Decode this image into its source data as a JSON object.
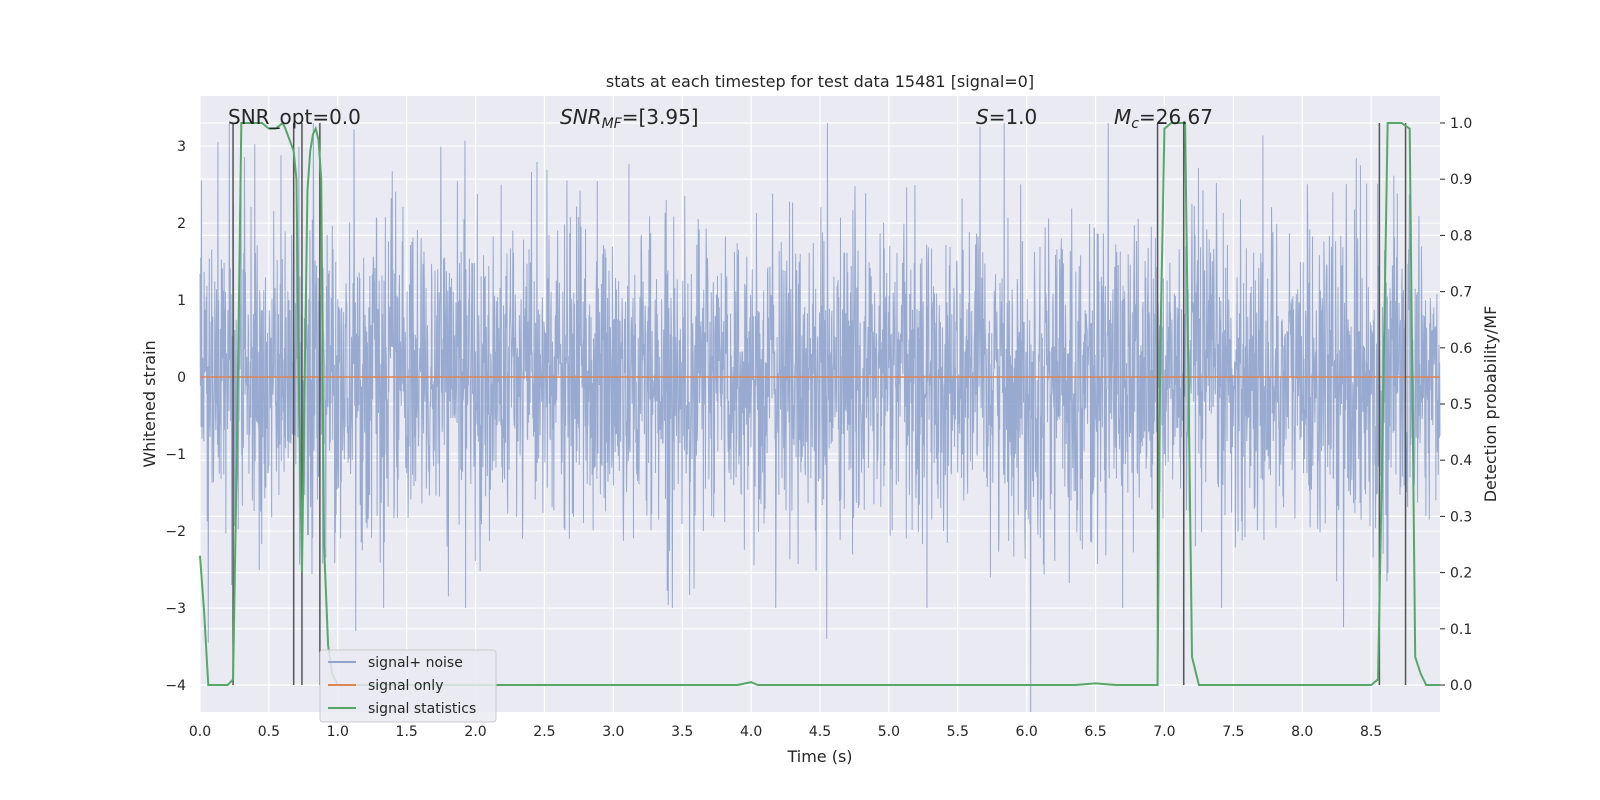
{
  "chart_data": {
    "type": "line",
    "title": "stats at each timestep for test data 15481 [signal=0]",
    "xlabel": "Time (s)",
    "ylabel": "Whitened strain",
    "y2label": "Detection probability/MF",
    "xlim": [
      0.0,
      9.0
    ],
    "ylim": [
      -4.35,
      3.65
    ],
    "y2lim": [
      -0.048,
      1.048
    ],
    "xticks": [
      "0.0",
      "0.5",
      "1.0",
      "1.5",
      "2.0",
      "2.5",
      "3.0",
      "3.5",
      "4.0",
      "4.5",
      "5.0",
      "5.5",
      "6.0",
      "6.5",
      "7.0",
      "7.5",
      "8.0",
      "8.5"
    ],
    "yticks": [
      "3",
      "2",
      "1",
      "0",
      "−1",
      "−2",
      "−3",
      "−4"
    ],
    "y2ticks": [
      "1.0",
      "0.9",
      "0.8",
      "0.7",
      "0.6",
      "0.5",
      "0.4",
      "0.3",
      "0.2",
      "0.1",
      "0.0"
    ],
    "grid": true,
    "legend_position": "lower-left",
    "annotations": {
      "snr_opt": "SNR_opt=0.0",
      "snr_mf_main": "SNR",
      "snr_mf_sub": "MF",
      "snr_mf_rest": "=[3.95]",
      "s_main": "S",
      "s_rest": "=1.0",
      "mc_main": "M",
      "mc_sub": "c",
      "mc_rest": "=26.67"
    },
    "series": [
      {
        "name": "signal+ noise",
        "color": "#8fa3cc",
        "description_kind": "noise",
        "approx_std": 1.0
      },
      {
        "name": "signal only",
        "color": "#dd8452",
        "x": [
          0.0,
          9.0
        ],
        "y": [
          0.0,
          0.0
        ]
      },
      {
        "name": "signal statistics",
        "color": "#55a868",
        "x": [
          0.0,
          0.03,
          0.06,
          0.1,
          0.15,
          0.2,
          0.24,
          0.27,
          0.3,
          0.35,
          0.4,
          0.45,
          0.5,
          0.55,
          0.6,
          0.62,
          0.68,
          0.7,
          0.72,
          0.74,
          0.76,
          0.78,
          0.8,
          0.82,
          0.84,
          0.86,
          0.88,
          0.9,
          0.93,
          0.96,
          1.0,
          2.0,
          3.0,
          3.9,
          4.0,
          4.05,
          4.5,
          5.0,
          5.5,
          6.0,
          6.35,
          6.5,
          6.65,
          6.9,
          6.95,
          6.97,
          7.0,
          7.05,
          7.1,
          7.15,
          7.2,
          7.25,
          7.3,
          8.0,
          8.5,
          8.55,
          8.58,
          8.62,
          8.67,
          8.72,
          8.78,
          8.82,
          8.86,
          8.9,
          9.0
        ],
        "y": [
          0.23,
          0.13,
          0.0,
          0.0,
          0.0,
          0.0,
          0.01,
          0.45,
          1.0,
          1.0,
          1.0,
          1.0,
          0.99,
          0.99,
          1.0,
          0.99,
          0.95,
          0.9,
          0.5,
          0.2,
          0.55,
          0.88,
          0.95,
          0.98,
          0.99,
          0.97,
          0.9,
          0.25,
          0.07,
          0.02,
          0.0,
          0.0,
          0.0,
          0.0,
          0.005,
          0.0,
          0.0,
          0.0,
          0.0,
          0.0,
          0.0,
          0.003,
          0.0,
          0.0,
          0.0,
          0.6,
          0.99,
          1.0,
          1.0,
          1.0,
          0.05,
          0.0,
          0.0,
          0.0,
          0.0,
          0.01,
          0.4,
          1.0,
          1.0,
          1.0,
          0.99,
          0.05,
          0.02,
          0.0,
          0.0
        ]
      }
    ],
    "vertical_markers_x": [
      0.24,
      0.68,
      0.74,
      0.87,
      6.95,
      7.14,
      8.56,
      8.75
    ],
    "noise_dips": [
      {
        "x": 6.03,
        "y": -4.35
      },
      {
        "x": 4.55,
        "y": -3.4
      },
      {
        "x": 0.06,
        "y": -3.45
      },
      {
        "x": 1.13,
        "y": -3.3
      },
      {
        "x": 8.3,
        "y": -3.25
      }
    ]
  }
}
